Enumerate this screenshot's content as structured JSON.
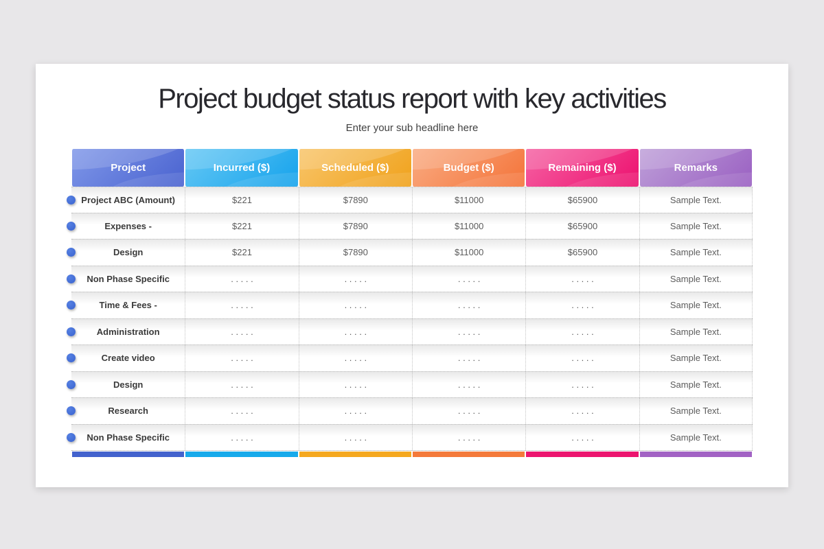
{
  "slide": {
    "title": "Project budget status report with key activities",
    "subtitle": "Enter your sub headline here"
  },
  "table": {
    "columns": [
      {
        "label": "Project",
        "header_gradient_from": "#7e96e8",
        "header_gradient_to": "#4a63d0",
        "bar_color": "#4363cd"
      },
      {
        "label": "Incurred ($)",
        "header_gradient_from": "#63c7f4",
        "header_gradient_to": "#16a3ec",
        "bar_color": "#18aaeb"
      },
      {
        "label": "Scheduled ($)",
        "header_gradient_from": "#f8c468",
        "header_gradient_to": "#f0a21c",
        "bar_color": "#f5a81f"
      },
      {
        "label": "Budget ($)",
        "header_gradient_from": "#f9aa80",
        "header_gradient_to": "#f4743a",
        "bar_color": "#f47a3b"
      },
      {
        "label": "Remaining ($)",
        "header_gradient_from": "#f560a2",
        "header_gradient_to": "#ed116f",
        "bar_color": "#ec156f"
      },
      {
        "label": "Remarks",
        "header_gradient_from": "#bd9ed8",
        "header_gradient_to": "#9a60c2",
        "bar_color": "#a263c4"
      }
    ],
    "bullet_color": "#3d6cd7",
    "rows": [
      {
        "label": "Project ABC (Amount)",
        "values": [
          "$221",
          "$7890",
          "$11000",
          "$65900",
          "Sample Text."
        ]
      },
      {
        "label": "Expenses -",
        "values": [
          "$221",
          "$7890",
          "$11000",
          "$65900",
          "Sample Text."
        ]
      },
      {
        "label": "Design",
        "values": [
          "$221",
          "$7890",
          "$11000",
          "$65900",
          "Sample Text."
        ]
      },
      {
        "label": "Non Phase Specific",
        "values": [
          ". . . . .",
          ". . . . .",
          ". . . . .",
          ". . . . .",
          "Sample Text."
        ]
      },
      {
        "label": "Time & Fees -",
        "values": [
          ". . . . .",
          ". . . . .",
          ". . . . .",
          ". . . . .",
          "Sample Text."
        ]
      },
      {
        "label": "Administration",
        "values": [
          ". . . . .",
          ". . . . .",
          ". . . . .",
          ". . . . .",
          "Sample Text."
        ]
      },
      {
        "label": "Create video",
        "values": [
          ". . . . .",
          ". . . . .",
          ". . . . .",
          ". . . . .",
          "Sample Text."
        ]
      },
      {
        "label": "Design",
        "values": [
          ". . . . .",
          ". . . . .",
          ". . . . .",
          ". . . . .",
          "Sample Text."
        ]
      },
      {
        "label": "Research",
        "values": [
          ". . . . .",
          ". . . . .",
          ". . . . .",
          ". . . . .",
          "Sample Text."
        ]
      },
      {
        "label": "Non Phase Specific",
        "values": [
          ". . . . .",
          ". . . . .",
          ". . . . .",
          ". . . . .",
          "Sample Text."
        ]
      }
    ]
  }
}
